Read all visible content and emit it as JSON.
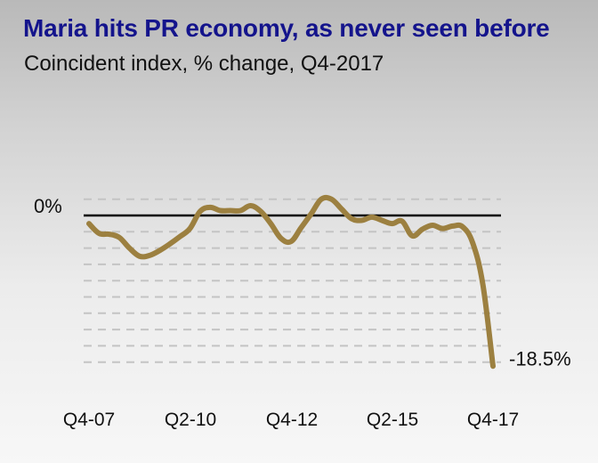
{
  "title": "Maria hits PR economy, as never seen before",
  "subtitle": "Coincident index, % change, Q4-2017",
  "colors": {
    "title": "#14148c",
    "line": "#9c8040",
    "zero_line": "#000000",
    "grid": "#c4c4c4"
  },
  "chart_data": {
    "type": "line",
    "title": "Maria hits PR economy, as never seen before",
    "subtitle": "Coincident index, % change, Q4-2017",
    "xlabel": "",
    "ylabel": "",
    "x_tick_labels": [
      "Q4-07",
      "Q2-10",
      "Q4-12",
      "Q2-15",
      "Q4-17"
    ],
    "zero_label": "0%",
    "end_label": "-18.5%",
    "ylim": [
      -20,
      4
    ],
    "grid": "horizontal-dashed",
    "y_gridlines": [
      2,
      -2,
      -4,
      -6,
      -8,
      -10,
      -12,
      -14,
      -16,
      -18
    ],
    "series": [
      {
        "x": [
          "Q4-07",
          "Q1-08",
          "Q2-08",
          "Q3-08",
          "Q4-08",
          "Q1-09",
          "Q2-09",
          "Q3-09",
          "Q4-09",
          "Q1-10",
          "Q2-10",
          "Q3-10",
          "Q4-10",
          "Q1-11",
          "Q2-11",
          "Q3-11",
          "Q4-11",
          "Q1-12",
          "Q2-12",
          "Q3-12",
          "Q4-12",
          "Q1-13",
          "Q2-13",
          "Q3-13",
          "Q4-13",
          "Q1-14",
          "Q2-14",
          "Q3-14",
          "Q4-14",
          "Q1-15",
          "Q2-15",
          "Q3-15",
          "Q4-15",
          "Q1-16",
          "Q2-16",
          "Q3-16",
          "Q4-16",
          "Q1-17",
          "Q2-17",
          "Q3-17",
          "Q4-17"
        ],
        "values": [
          -1.0,
          -2.2,
          -2.3,
          -2.7,
          -4.0,
          -5.0,
          -4.9,
          -4.3,
          -3.5,
          -2.6,
          -1.6,
          0.5,
          1.0,
          0.6,
          0.6,
          0.6,
          1.2,
          0.5,
          -1.0,
          -2.8,
          -3.2,
          -1.5,
          0.2,
          2.0,
          2.0,
          0.8,
          -0.4,
          -0.6,
          -0.2,
          -0.6,
          -1.0,
          -0.7,
          -2.5,
          -1.7,
          -1.2,
          -1.6,
          -1.3,
          -1.4,
          -3.4,
          -8.5,
          -18.5
        ]
      }
    ]
  }
}
